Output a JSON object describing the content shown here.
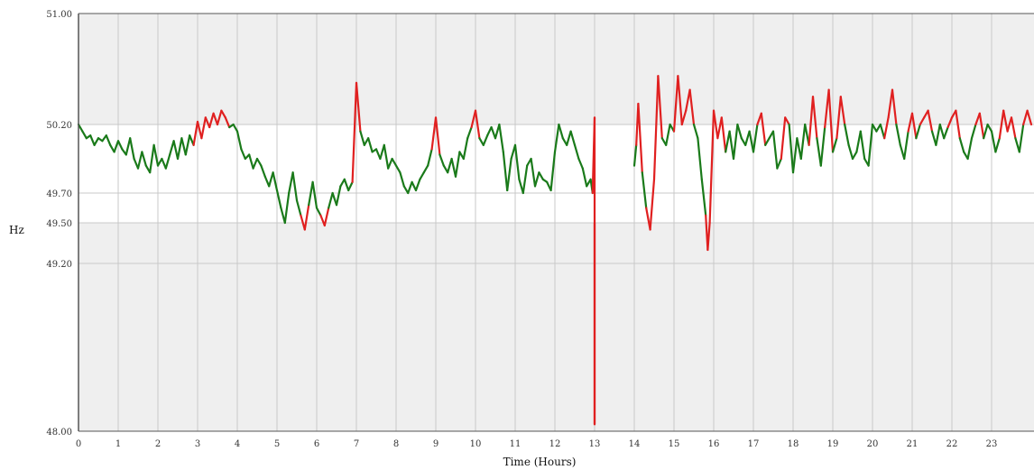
{
  "chart_data": {
    "type": "line",
    "title": "",
    "xlabel": "Time (Hours)",
    "ylabel": "Hz",
    "xlim": [
      0,
      24
    ],
    "ylim": [
      48.0,
      51.0
    ],
    "x_ticks": [
      "0",
      "1",
      "2",
      "3",
      "4",
      "5",
      "6",
      "7",
      "8",
      "9",
      "10",
      "11",
      "12",
      "13",
      "14",
      "15",
      "16",
      "17",
      "18",
      "19",
      "20",
      "21",
      "22",
      "23"
    ],
    "y_ticks": [
      {
        "value": 51.0,
        "label": "51.00"
      },
      {
        "value": 50.2,
        "label": "50.20"
      },
      {
        "value": 49.7,
        "label": "49.70"
      },
      {
        "value": 49.5,
        "label": "49.50"
      },
      {
        "value": 49.2,
        "label": "49.20"
      },
      {
        "value": 48.0,
        "label": "48.00"
      }
    ],
    "normal_band": [
      49.5,
      50.2
    ],
    "grid": true,
    "colors": {
      "in_band": "#1a7a1a",
      "out_of_band": "#e02020",
      "out_of_band_background": "#efefef",
      "band_background": "#ffffff",
      "grid": "#c8c8c8",
      "axis": "#555555"
    },
    "series": [
      {
        "segments": [
          {
            "x": [
              0,
              0.1,
              0.2,
              0.3,
              0.4,
              0.5,
              0.6,
              0.7,
              0.8,
              0.9,
              1.0,
              1.1,
              1.2,
              1.3,
              1.4,
              1.5,
              1.6,
              1.7,
              1.8,
              1.9,
              2.0,
              2.1,
              2.2,
              2.3,
              2.4,
              2.5,
              2.6,
              2.7,
              2.8,
              2.9,
              3.0,
              3.1,
              3.2,
              3.3,
              3.4,
              3.5,
              3.6,
              3.7,
              3.8,
              3.9,
              4.0,
              4.1,
              4.2,
              4.3,
              4.4,
              4.5,
              4.6,
              4.7,
              4.8,
              4.9,
              5.0,
              5.1,
              5.2,
              5.3,
              5.4,
              5.5,
              5.6,
              5.7,
              5.8,
              5.9,
              6.0,
              6.1,
              6.2,
              6.3,
              6.4,
              6.5,
              6.6,
              6.7,
              6.8,
              6.9,
              7.0,
              7.1,
              7.2,
              7.3,
              7.4,
              7.5,
              7.6,
              7.7,
              7.8,
              7.9,
              8.0,
              8.1,
              8.2,
              8.3,
              8.4,
              8.5,
              8.6,
              8.7,
              8.8,
              8.9,
              9.0,
              9.1,
              9.2,
              9.3,
              9.4,
              9.5,
              9.6,
              9.7,
              9.8,
              9.9,
              10.0,
              10.1,
              10.2,
              10.3,
              10.4,
              10.5,
              10.6,
              10.7,
              10.8,
              10.9,
              11.0,
              11.1,
              11.2,
              11.3,
              11.4,
              11.5,
              11.6,
              11.7,
              11.8,
              11.9,
              12.0,
              12.1,
              12.2,
              12.3,
              12.4,
              12.5,
              12.6,
              12.7,
              12.8,
              12.9,
              12.95,
              13.0
            ],
            "y": [
              50.2,
              50.15,
              50.1,
              50.12,
              50.05,
              50.1,
              50.08,
              50.12,
              50.05,
              50.0,
              50.08,
              50.02,
              49.98,
              50.1,
              49.95,
              49.88,
              50.0,
              49.9,
              49.85,
              50.05,
              49.9,
              49.95,
              49.88,
              49.98,
              50.08,
              49.95,
              50.1,
              49.98,
              50.12,
              50.05,
              50.22,
              50.1,
              50.25,
              50.18,
              50.28,
              50.2,
              50.3,
              50.25,
              50.18,
              50.2,
              50.15,
              50.02,
              49.95,
              49.98,
              49.88,
              49.95,
              49.9,
              49.82,
              49.75,
              49.85,
              49.72,
              49.6,
              49.5,
              49.7,
              49.85,
              49.65,
              49.55,
              49.45,
              49.62,
              49.78,
              49.6,
              49.55,
              49.48,
              49.6,
              49.7,
              49.62,
              49.75,
              49.8,
              49.72,
              49.78,
              50.5,
              50.15,
              50.05,
              50.1,
              50.0,
              50.02,
              49.95,
              50.05,
              49.88,
              49.95,
              49.9,
              49.85,
              49.75,
              49.7,
              49.78,
              49.72,
              49.8,
              49.85,
              49.9,
              50.02,
              50.25,
              49.98,
              49.9,
              49.85,
              49.95,
              49.82,
              50.0,
              49.95,
              50.1,
              50.18,
              50.3,
              50.1,
              50.05,
              50.12,
              50.18,
              50.1,
              50.2,
              50.0,
              49.72,
              49.95,
              50.05,
              49.8,
              49.7,
              49.9,
              49.95,
              49.75,
              49.85,
              49.8,
              49.78,
              49.72,
              50.0,
              50.2,
              50.1,
              50.05,
              50.15,
              50.05,
              49.95,
              49.88,
              49.75,
              49.8,
              49.7,
              50.25
            ]
          },
          {
            "x": [
              13.0,
              13.0,
              13.0
            ],
            "y": [
              50.25,
              48.05,
              49.5
            ]
          },
          {
            "x": [
              14.0,
              14.05,
              14.1,
              14.2,
              14.3,
              14.4,
              14.5,
              14.6,
              14.7,
              14.8,
              14.9,
              15.0,
              15.1,
              15.2,
              15.3,
              15.4,
              15.5,
              15.6,
              15.7,
              15.8,
              15.85,
              15.9,
              16.0,
              16.1,
              16.2,
              16.3,
              16.4,
              16.5,
              16.6,
              16.7,
              16.8,
              16.9,
              17.0,
              17.1,
              17.2,
              17.3,
              17.4,
              17.5,
              17.6,
              17.7,
              17.8,
              17.9,
              18.0,
              18.1,
              18.2,
              18.3,
              18.4,
              18.5,
              18.6,
              18.7,
              18.8,
              18.9,
              19.0,
              19.1,
              19.2,
              19.3,
              19.4,
              19.5,
              19.6,
              19.7,
              19.8,
              19.9,
              20.0,
              20.1,
              20.2,
              20.3,
              20.4,
              20.5,
              20.6,
              20.7,
              20.8,
              20.9,
              21.0,
              21.1,
              21.2,
              21.3,
              21.4,
              21.5,
              21.6,
              21.7,
              21.8,
              21.9,
              22.0,
              22.1,
              22.2,
              22.3,
              22.4,
              22.5,
              22.6,
              22.7,
              22.8,
              22.9,
              23.0,
              23.1,
              23.2,
              23.3,
              23.4,
              23.5,
              23.6,
              23.7,
              23.8,
              23.9,
              24.0
            ],
            "y": [
              49.9,
              50.05,
              50.35,
              49.85,
              49.6,
              49.45,
              49.8,
              50.55,
              50.1,
              50.05,
              50.2,
              50.15,
              50.55,
              50.2,
              50.3,
              50.45,
              50.2,
              50.1,
              49.8,
              49.55,
              49.3,
              49.5,
              50.3,
              50.1,
              50.25,
              50.0,
              50.15,
              49.95,
              50.2,
              50.1,
              50.05,
              50.15,
              50.0,
              50.2,
              50.28,
              50.05,
              50.1,
              50.15,
              49.88,
              49.95,
              50.25,
              50.2,
              49.85,
              50.1,
              49.95,
              50.2,
              50.05,
              50.4,
              50.1,
              49.9,
              50.18,
              50.45,
              50.0,
              50.1,
              50.4,
              50.2,
              50.05,
              49.95,
              50.0,
              50.15,
              49.95,
              49.9,
              50.2,
              50.15,
              50.2,
              50.1,
              50.25,
              50.45,
              50.2,
              50.05,
              49.95,
              50.15,
              50.28,
              50.1,
              50.2,
              50.25,
              50.3,
              50.15,
              50.05,
              50.2,
              50.1,
              50.18,
              50.25,
              50.3,
              50.1,
              50.0,
              49.95,
              50.1,
              50.2,
              50.28,
              50.1,
              50.2,
              50.15,
              50.0,
              50.1,
              50.3,
              50.15,
              50.25,
              50.1,
              50.0,
              50.2,
              50.3,
              50.2
            ]
          }
        ]
      }
    ]
  }
}
